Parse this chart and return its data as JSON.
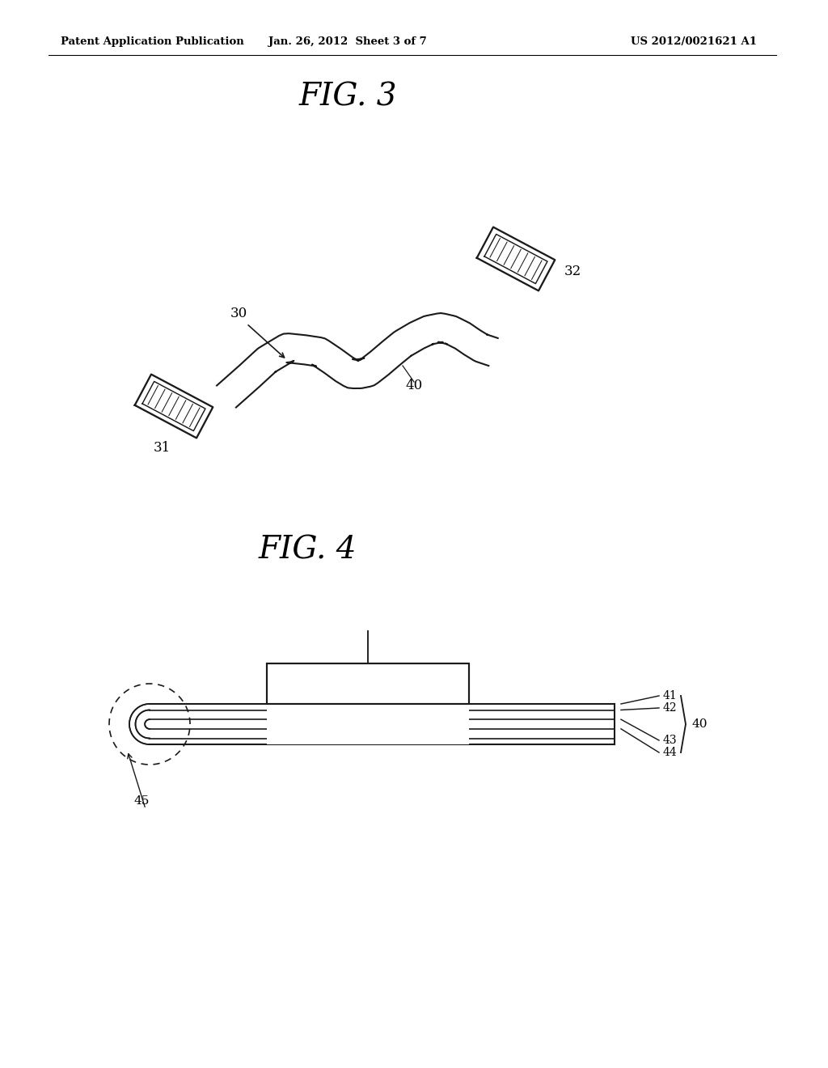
{
  "background_color": "#ffffff",
  "header_left": "Patent Application Publication",
  "header_center": "Jan. 26, 2012  Sheet 3 of 7",
  "header_right": "US 2012/0021621 A1",
  "fig3_title": "FIG. 3",
  "fig4_title": "FIG. 4",
  "line_color": "#1a1a1a",
  "line_width": 1.5
}
